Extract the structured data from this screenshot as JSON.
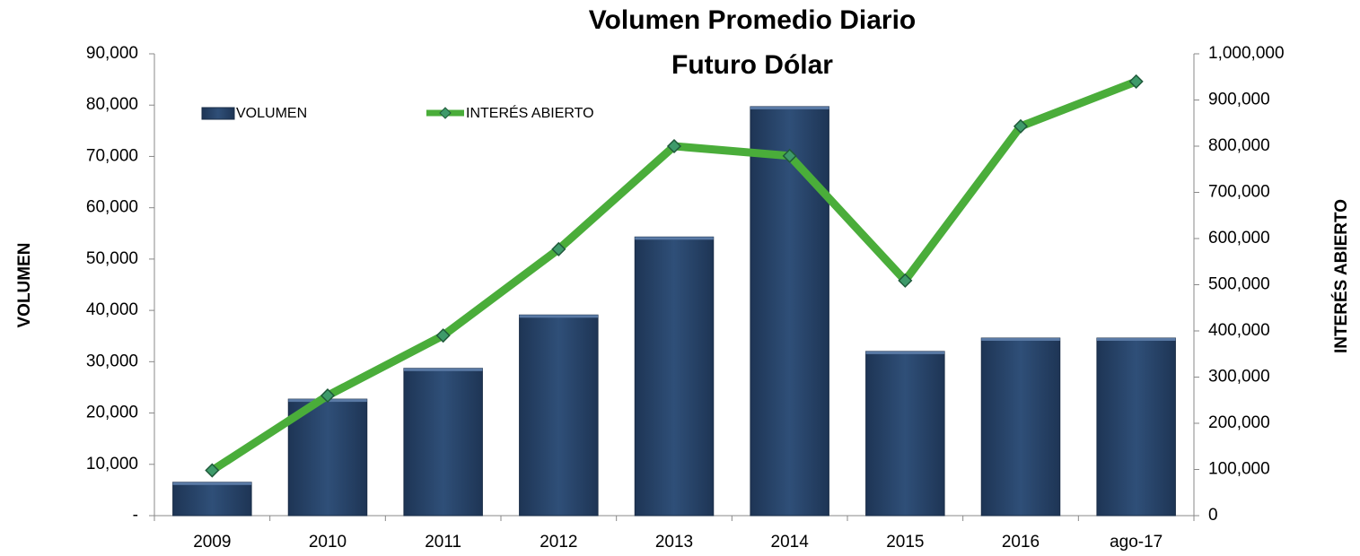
{
  "chart_data": {
    "type": "combo",
    "title": "Volumen Promedio Diario",
    "subtitle": "Futuro Dólar",
    "y_label": "VOLUMEN",
    "y2_label": "INTERÉS ABIERTO",
    "categories": [
      "2009",
      "2010",
      "2011",
      "2012",
      "2013",
      "2014",
      "2015",
      "2016",
      "ago-17"
    ],
    "series": [
      {
        "name": "VOLUMEN",
        "type": "bar",
        "color": "#2c4a70",
        "values": [
          6500,
          22700,
          28700,
          39100,
          54300,
          79700,
          32000,
          34600,
          34600
        ]
      },
      {
        "name": "INTERÉS ABIERTO",
        "type": "line",
        "axis": "y2",
        "color": "#4aad3a",
        "values": [
          98000,
          260000,
          390000,
          577000,
          800000,
          779000,
          509000,
          843000,
          940000
        ]
      }
    ],
    "ylim": [
      0,
      90000
    ],
    "yticks": [
      {
        "value": 0,
        "label": "-"
      },
      {
        "value": 10000,
        "label": "10,000"
      },
      {
        "value": 20000,
        "label": "20,000"
      },
      {
        "value": 30000,
        "label": "30,000"
      },
      {
        "value": 40000,
        "label": "40,000"
      },
      {
        "value": 50000,
        "label": "50,000"
      },
      {
        "value": 60000,
        "label": "60,000"
      },
      {
        "value": 70000,
        "label": "70,000"
      },
      {
        "value": 80000,
        "label": "80,000"
      },
      {
        "value": 90000,
        "label": "90,000"
      }
    ],
    "y2lim": [
      0,
      1000000
    ],
    "y2ticks": [
      0,
      {
        "value": 100000,
        "label": "100,000"
      },
      {
        "value": 200000,
        "label": "200,000"
      },
      {
        "value": 300000,
        "label": "300,000"
      },
      {
        "value": 400000,
        "label": "400,000"
      },
      {
        "value": 500000,
        "label": "500,000"
      },
      {
        "value": 600000,
        "label": "600,000"
      },
      {
        "value": 700000,
        "label": "700,000"
      },
      {
        "value": 800000,
        "label": "800,000"
      },
      {
        "value": 900000,
        "label": "900,000"
      },
      {
        "value": 1000000,
        "label": "1,000,000"
      }
    ],
    "grid": false,
    "legend": "upper left"
  }
}
